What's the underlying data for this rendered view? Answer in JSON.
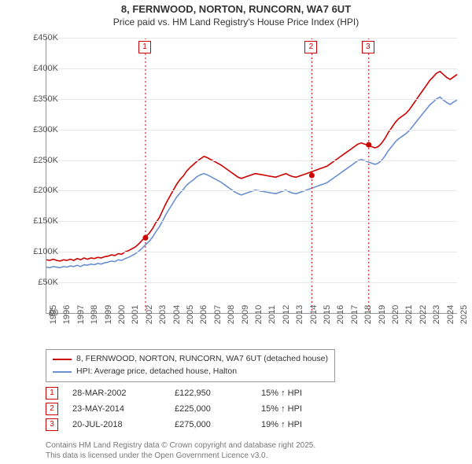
{
  "title": "8, FERNWOOD, NORTON, RUNCORN, WA7 6UT",
  "subtitle": "Price paid vs. HM Land Registry's House Price Index (HPI)",
  "chart": {
    "type": "line",
    "x_start_year": 1995,
    "x_end_year": 2025,
    "ylim": [
      0,
      450000
    ],
    "ytick_step": 50000,
    "ylabels": [
      "£0",
      "£50K",
      "£100K",
      "£150K",
      "£200K",
      "£250K",
      "£300K",
      "£350K",
      "£400K",
      "£450K"
    ],
    "background_color": "#ffffff",
    "grid_color": "#e8e8e8",
    "series": [
      {
        "name": "8, FERNWOOD, NORTON, RUNCORN, WA7 6UT (detached house)",
        "color": "#cc0000",
        "width": 1.6,
        "values": [
          87,
          86,
          88,
          86,
          85,
          87,
          86,
          88,
          86,
          89,
          87,
          90,
          88,
          90,
          89,
          91,
          90,
          92,
          93,
          95,
          94,
          97,
          96,
          100,
          102,
          105,
          108,
          113,
          119,
          125,
          130,
          138,
          148,
          156,
          168,
          180,
          190,
          200,
          210,
          218,
          224,
          232,
          238,
          243,
          248,
          252,
          256,
          254,
          251,
          248,
          245,
          242,
          238,
          234,
          230,
          226,
          222,
          220,
          222,
          224,
          226,
          228,
          227,
          226,
          225,
          224,
          223,
          222,
          224,
          226,
          228,
          225,
          223,
          222,
          224,
          226,
          228,
          230,
          232,
          234,
          236,
          238,
          240,
          244,
          248,
          252,
          256,
          260,
          264,
          268,
          272,
          276,
          278,
          276,
          274,
          272,
          270,
          272,
          278,
          286,
          296,
          304,
          312,
          318,
          322,
          326,
          332,
          340,
          348,
          356,
          364,
          372,
          380,
          386,
          392,
          395,
          390,
          385,
          382,
          386,
          390
        ]
      },
      {
        "name": "HPI: Average price, detached house, Halton",
        "color": "#6a8fd0",
        "width": 1.6,
        "values": [
          75,
          74,
          76,
          75,
          74,
          76,
          75,
          77,
          76,
          78,
          76,
          79,
          78,
          80,
          79,
          81,
          80,
          82,
          83,
          85,
          84,
          87,
          86,
          89,
          91,
          94,
          97,
          101,
          106,
          112,
          117,
          124,
          133,
          141,
          151,
          162,
          171,
          180,
          189,
          196,
          202,
          209,
          214,
          218,
          223,
          226,
          228,
          226,
          223,
          220,
          217,
          214,
          210,
          206,
          202,
          198,
          195,
          193,
          195,
          197,
          199,
          201,
          200,
          199,
          198,
          197,
          196,
          195,
          197,
          199,
          201,
          198,
          196,
          195,
          197,
          199,
          201,
          203,
          205,
          207,
          209,
          211,
          213,
          217,
          221,
          225,
          229,
          233,
          237,
          241,
          245,
          249,
          251,
          249,
          247,
          245,
          243,
          245,
          250,
          257,
          266,
          273,
          280,
          285,
          289,
          293,
          298,
          305,
          312,
          319,
          326,
          333,
          340,
          345,
          350,
          353,
          348,
          344,
          341,
          345,
          348
        ]
      }
    ],
    "sale_markers": [
      {
        "n": "1",
        "year": 2002.24,
        "price": 122950,
        "color": "#cc0000"
      },
      {
        "n": "2",
        "year": 2014.39,
        "price": 225000,
        "color": "#cc0000"
      },
      {
        "n": "3",
        "year": 2018.55,
        "price": 275000,
        "color": "#cc0000"
      }
    ]
  },
  "legend": {
    "items": [
      {
        "label": "8, FERNWOOD, NORTON, RUNCORN, WA7 6UT (detached house)",
        "color": "#cc0000"
      },
      {
        "label": "HPI: Average price, detached house, Halton",
        "color": "#6a8fd0"
      }
    ]
  },
  "sales_table": {
    "rows": [
      {
        "n": "1",
        "date": "28-MAR-2002",
        "price": "£122,950",
        "diff": "15% ↑ HPI",
        "color": "#cc0000"
      },
      {
        "n": "2",
        "date": "23-MAY-2014",
        "price": "£225,000",
        "diff": "15% ↑ HPI",
        "color": "#cc0000"
      },
      {
        "n": "3",
        "date": "20-JUL-2018",
        "price": "£275,000",
        "diff": "19% ↑ HPI",
        "color": "#cc0000"
      }
    ]
  },
  "footer": {
    "line1": "Contains HM Land Registry data © Crown copyright and database right 2025.",
    "line2": "This data is licensed under the Open Government Licence v3.0."
  }
}
